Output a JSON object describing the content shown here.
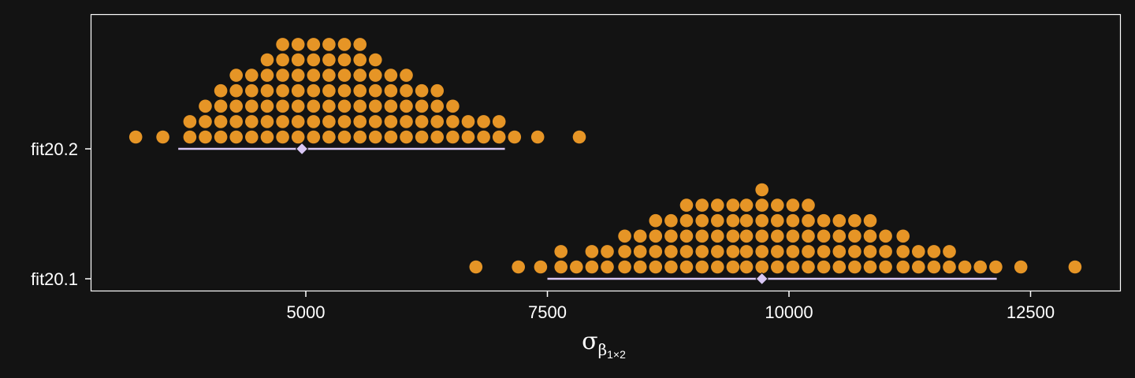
{
  "chart_data": {
    "type": "dotplot",
    "xlabel": "σ",
    "xlabel_subscript": "β",
    "xlabel_sub_subscript": "1×2",
    "ylabel": "",
    "xlim": [
      2700,
      13400
    ],
    "x_ticks": [
      {
        "value": 5000,
        "label": "5000"
      },
      {
        "value": 7500,
        "label": "7500"
      },
      {
        "value": 10000,
        "label": "10000"
      },
      {
        "value": 12500,
        "label": "12500"
      }
    ],
    "categories": [
      "fit20.1",
      "fit20.2"
    ],
    "grid": false,
    "colors": {
      "background": "#131313",
      "dots": "#E69526",
      "interval": "#D9C7F5",
      "panel_border": "#ffffff",
      "text": "#ffffff"
    },
    "dot_step": 160,
    "series": [
      {
        "category": "fit20.1",
        "bin_counts": [
          {
            "x": 6760,
            "count": 1
          },
          {
            "x": 7200,
            "count": 1
          },
          {
            "x": 7430,
            "count": 1
          },
          {
            "x": 7640,
            "count": 2
          },
          {
            "x": 7800,
            "count": 1
          },
          {
            "x": 7960,
            "count": 2
          },
          {
            "x": 8120,
            "count": 2
          },
          {
            "x": 8300,
            "count": 3
          },
          {
            "x": 8460,
            "count": 3
          },
          {
            "x": 8620,
            "count": 4
          },
          {
            "x": 8780,
            "count": 4
          },
          {
            "x": 8940,
            "count": 5
          },
          {
            "x": 9100,
            "count": 5
          },
          {
            "x": 9260,
            "count": 5
          },
          {
            "x": 9420,
            "count": 5
          },
          {
            "x": 9560,
            "count": 5
          },
          {
            "x": 9720,
            "count": 6
          },
          {
            "x": 9880,
            "count": 5
          },
          {
            "x": 10040,
            "count": 5
          },
          {
            "x": 10200,
            "count": 5
          },
          {
            "x": 10360,
            "count": 4
          },
          {
            "x": 10520,
            "count": 4
          },
          {
            "x": 10680,
            "count": 4
          },
          {
            "x": 10840,
            "count": 4
          },
          {
            "x": 11000,
            "count": 3
          },
          {
            "x": 11180,
            "count": 3
          },
          {
            "x": 11340,
            "count": 2
          },
          {
            "x": 11500,
            "count": 2
          },
          {
            "x": 11660,
            "count": 2
          },
          {
            "x": 11820,
            "count": 1
          },
          {
            "x": 11980,
            "count": 1
          },
          {
            "x": 12140,
            "count": 1
          },
          {
            "x": 12400,
            "count": 1
          },
          {
            "x": 12960,
            "count": 1
          }
        ],
        "point_estimate": 9720,
        "interval": [
          7500,
          12150
        ]
      },
      {
        "category": "fit20.2",
        "bin_counts": [
          {
            "x": 3240,
            "count": 1
          },
          {
            "x": 3520,
            "count": 1
          },
          {
            "x": 3800,
            "count": 2
          },
          {
            "x": 3960,
            "count": 3
          },
          {
            "x": 4120,
            "count": 4
          },
          {
            "x": 4280,
            "count": 5
          },
          {
            "x": 4440,
            "count": 5
          },
          {
            "x": 4600,
            "count": 6
          },
          {
            "x": 4760,
            "count": 7
          },
          {
            "x": 4920,
            "count": 7
          },
          {
            "x": 5080,
            "count": 7
          },
          {
            "x": 5240,
            "count": 7
          },
          {
            "x": 5400,
            "count": 7
          },
          {
            "x": 5560,
            "count": 7
          },
          {
            "x": 5720,
            "count": 6
          },
          {
            "x": 5880,
            "count": 5
          },
          {
            "x": 6040,
            "count": 5
          },
          {
            "x": 6200,
            "count": 4
          },
          {
            "x": 6360,
            "count": 4
          },
          {
            "x": 6520,
            "count": 3
          },
          {
            "x": 6680,
            "count": 2
          },
          {
            "x": 6840,
            "count": 2
          },
          {
            "x": 7000,
            "count": 2
          },
          {
            "x": 7160,
            "count": 1
          },
          {
            "x": 7400,
            "count": 1
          },
          {
            "x": 7830,
            "count": 1
          }
        ],
        "point_estimate": 4960,
        "interval": [
          3680,
          7060
        ]
      }
    ]
  }
}
